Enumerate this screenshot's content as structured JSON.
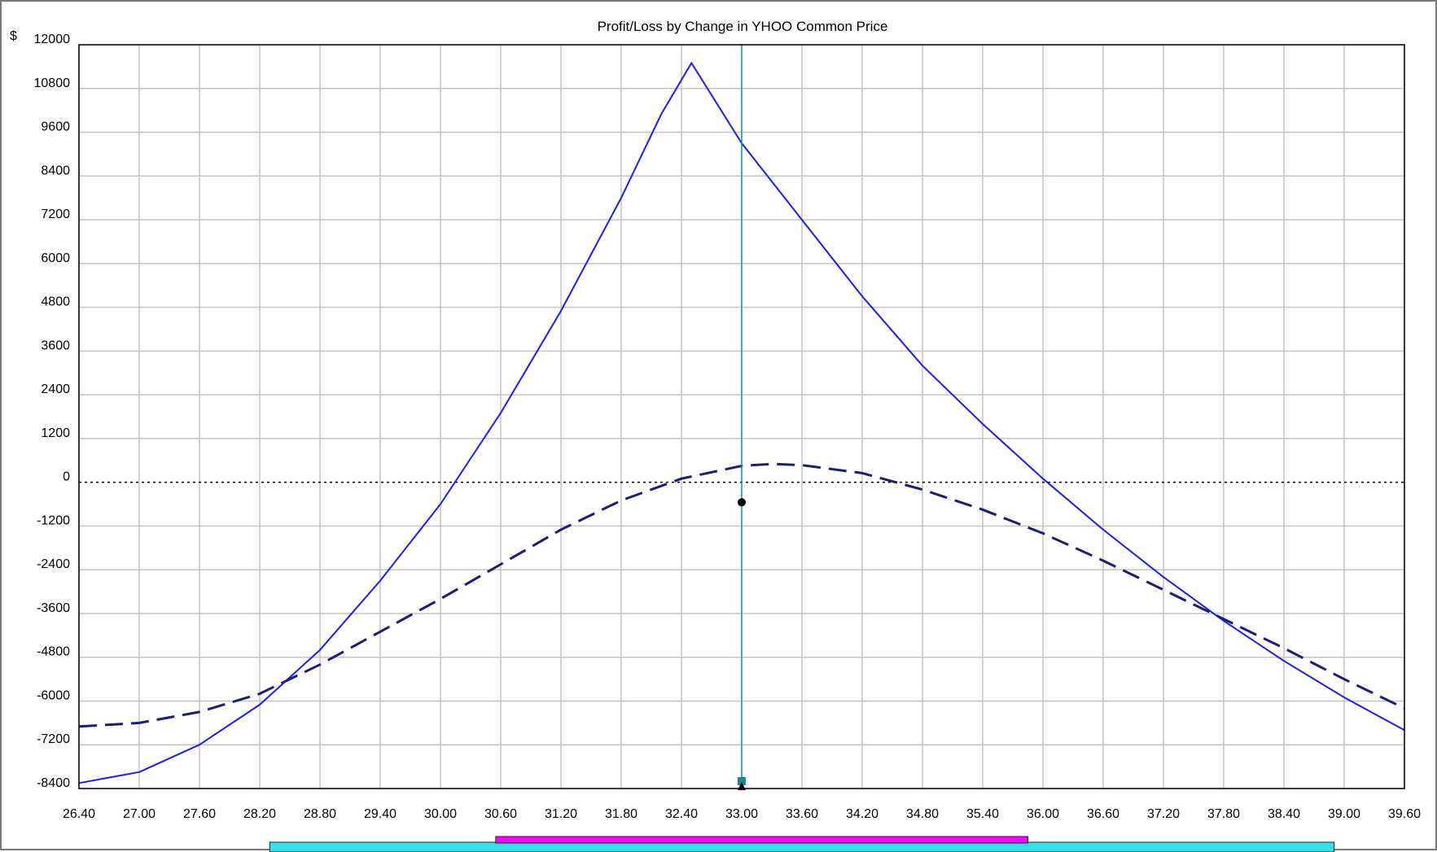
{
  "chart_data": {
    "type": "line",
    "title": "Profit/Loss by Change in YHOO Common Price",
    "y_unit_label": "$",
    "xlim": [
      26.4,
      39.6
    ],
    "ylim": [
      -8400,
      12000
    ],
    "x_ticks": [
      "26.40",
      "27.00",
      "27.60",
      "28.20",
      "28.80",
      "29.40",
      "30.00",
      "30.60",
      "31.20",
      "31.80",
      "32.40",
      "33.00",
      "33.60",
      "34.20",
      "34.80",
      "35.40",
      "36.00",
      "36.60",
      "37.20",
      "37.80",
      "38.40",
      "39.00",
      "39.60"
    ],
    "y_ticks": [
      "12000",
      "10800",
      "9600",
      "8400",
      "7200",
      "6000",
      "4800",
      "3600",
      "2400",
      "1200",
      "0",
      "-1200",
      "-2400",
      "-3600",
      "-4800",
      "-6000",
      "-7200",
      "-8400"
    ],
    "grid": true,
    "zero_line": true,
    "cursor_x": 33.0,
    "cursor_marker_y": -550,
    "series": [
      {
        "style": "solid",
        "color": "#1a1aff",
        "points": [
          [
            26.4,
            -8250
          ],
          [
            27.0,
            -7950
          ],
          [
            27.6,
            -7200
          ],
          [
            28.2,
            -6100
          ],
          [
            28.8,
            -4600
          ],
          [
            29.4,
            -2700
          ],
          [
            30.0,
            -600
          ],
          [
            30.6,
            1900
          ],
          [
            31.2,
            4700
          ],
          [
            31.8,
            7800
          ],
          [
            32.2,
            10100
          ],
          [
            32.5,
            11500
          ],
          [
            33.0,
            9300
          ],
          [
            33.6,
            7200
          ],
          [
            34.2,
            5100
          ],
          [
            34.8,
            3200
          ],
          [
            35.4,
            1600
          ],
          [
            36.0,
            100
          ],
          [
            36.6,
            -1300
          ],
          [
            37.2,
            -2600
          ],
          [
            37.8,
            -3800
          ],
          [
            38.4,
            -4900
          ],
          [
            39.0,
            -5900
          ],
          [
            39.6,
            -6800
          ]
        ]
      },
      {
        "style": "dashed",
        "color": "#1c1c7a",
        "points": [
          [
            26.4,
            -6700
          ],
          [
            27.0,
            -6600
          ],
          [
            27.6,
            -6300
          ],
          [
            28.2,
            -5800
          ],
          [
            28.8,
            -5000
          ],
          [
            29.4,
            -4100
          ],
          [
            30.0,
            -3200
          ],
          [
            30.6,
            -2250
          ],
          [
            31.2,
            -1300
          ],
          [
            31.8,
            -500
          ],
          [
            32.4,
            100
          ],
          [
            33.0,
            450
          ],
          [
            33.3,
            500
          ],
          [
            33.6,
            470
          ],
          [
            34.2,
            250
          ],
          [
            34.8,
            -200
          ],
          [
            35.4,
            -750
          ],
          [
            36.0,
            -1400
          ],
          [
            36.6,
            -2150
          ],
          [
            37.2,
            -2950
          ],
          [
            37.8,
            -3750
          ],
          [
            38.4,
            -4550
          ],
          [
            39.0,
            -5400
          ],
          [
            39.6,
            -6200
          ]
        ]
      }
    ],
    "range_bars": [
      {
        "color": "#33e0ea",
        "x_start": 28.3,
        "x_end": 38.9
      },
      {
        "color": "#ff00ff",
        "x_start": 30.55,
        "x_end": 35.85
      }
    ]
  }
}
